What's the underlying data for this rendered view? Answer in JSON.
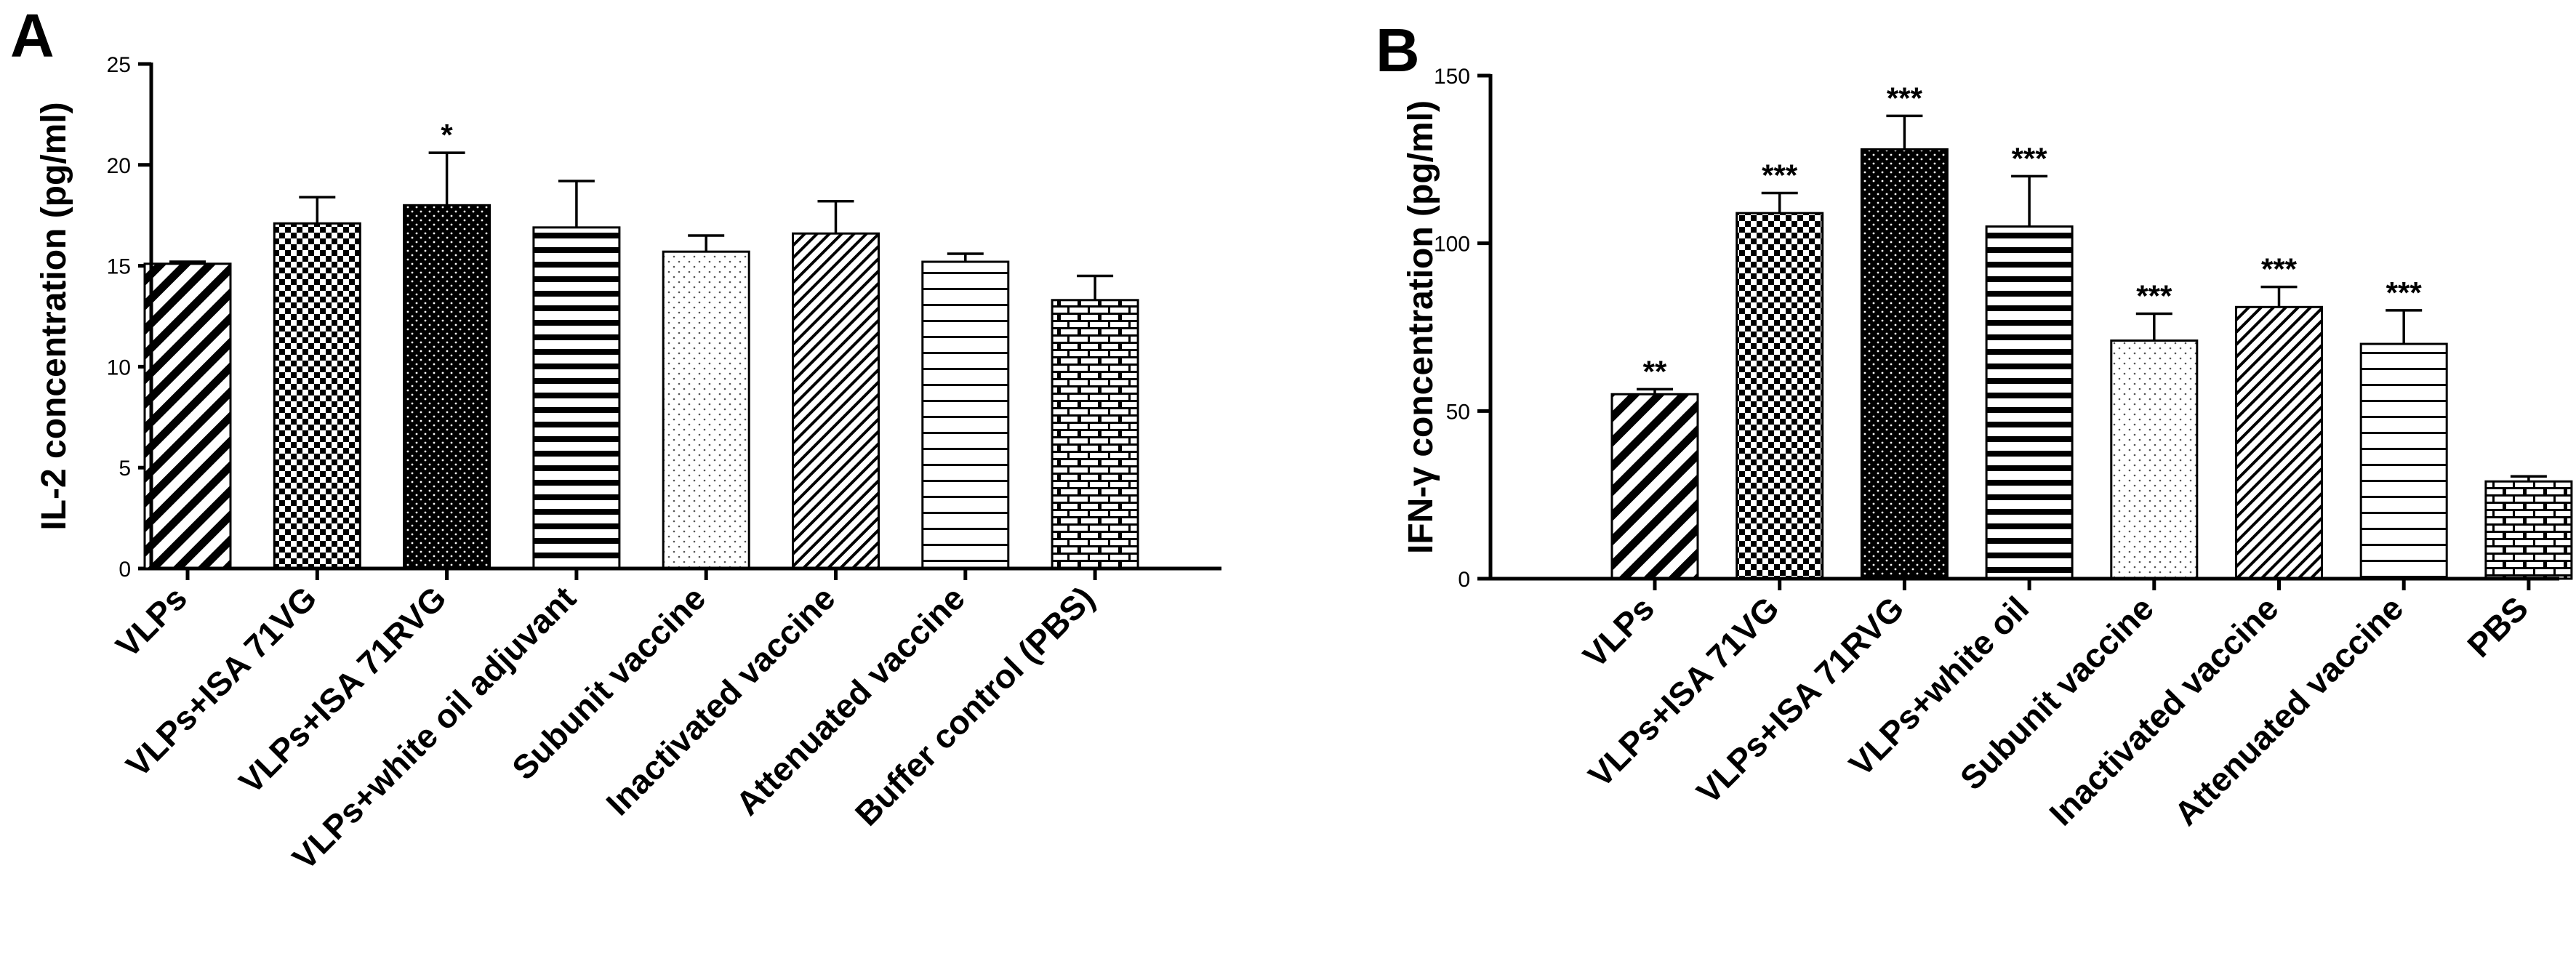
{
  "chart_data": [
    {
      "panel": "A",
      "type": "bar",
      "title": "",
      "xlabel": "",
      "ylabel": "IL-2 concentration (pg/ml)",
      "ylim": [
        0,
        25
      ],
      "yticks": [
        0,
        5,
        10,
        15,
        20,
        25
      ],
      "categories": [
        "VLPs",
        "VLPs+ISA 71VG",
        "VLPs+ISA 71RVG",
        "VLPs+white oil adjuvant",
        "Subunit vaccine",
        "Inactivated vaccine",
        "Attenuated vaccine",
        "Buffer control (PBS)"
      ],
      "values": [
        15.1,
        17.1,
        18.0,
        16.9,
        15.7,
        16.6,
        15.2,
        13.3
      ],
      "errors": [
        0.1,
        1.3,
        2.6,
        2.3,
        0.8,
        1.6,
        0.4,
        1.2
      ],
      "significance": [
        "",
        "",
        "*",
        "",
        "",
        "",
        "",
        ""
      ],
      "patterns": [
        "diag-wide",
        "checker",
        "dots-black",
        "hstripes-thick",
        "dots-light",
        "diag-fine",
        "hstripes-thin",
        "brick"
      ]
    },
    {
      "panel": "B",
      "type": "bar",
      "title": "",
      "xlabel": "",
      "ylabel": "IFN-γ concentration (pg/ml)",
      "ylim": [
        0,
        150
      ],
      "yticks": [
        0,
        50,
        100,
        150
      ],
      "categories": [
        "VLPs",
        "VLPs+ISA 71VG",
        "VLPs+ISA 71RVG",
        "VLPs+white oil",
        "Subunit vaccine",
        "Inactivated vaccine",
        "Attenuated vaccine",
        "PBS"
      ],
      "values": [
        55,
        109,
        128,
        105,
        71,
        81,
        70,
        29
      ],
      "errors": [
        1.5,
        6,
        10,
        15,
        8,
        6,
        10,
        1.5
      ],
      "significance": [
        "**",
        "***",
        "***",
        "***",
        "***",
        "***",
        "***",
        ""
      ],
      "patterns": [
        "diag-wide",
        "checker",
        "dots-black",
        "hstripes-thick",
        "dots-light",
        "diag-fine",
        "hstripes-thin",
        "brick"
      ]
    }
  ]
}
